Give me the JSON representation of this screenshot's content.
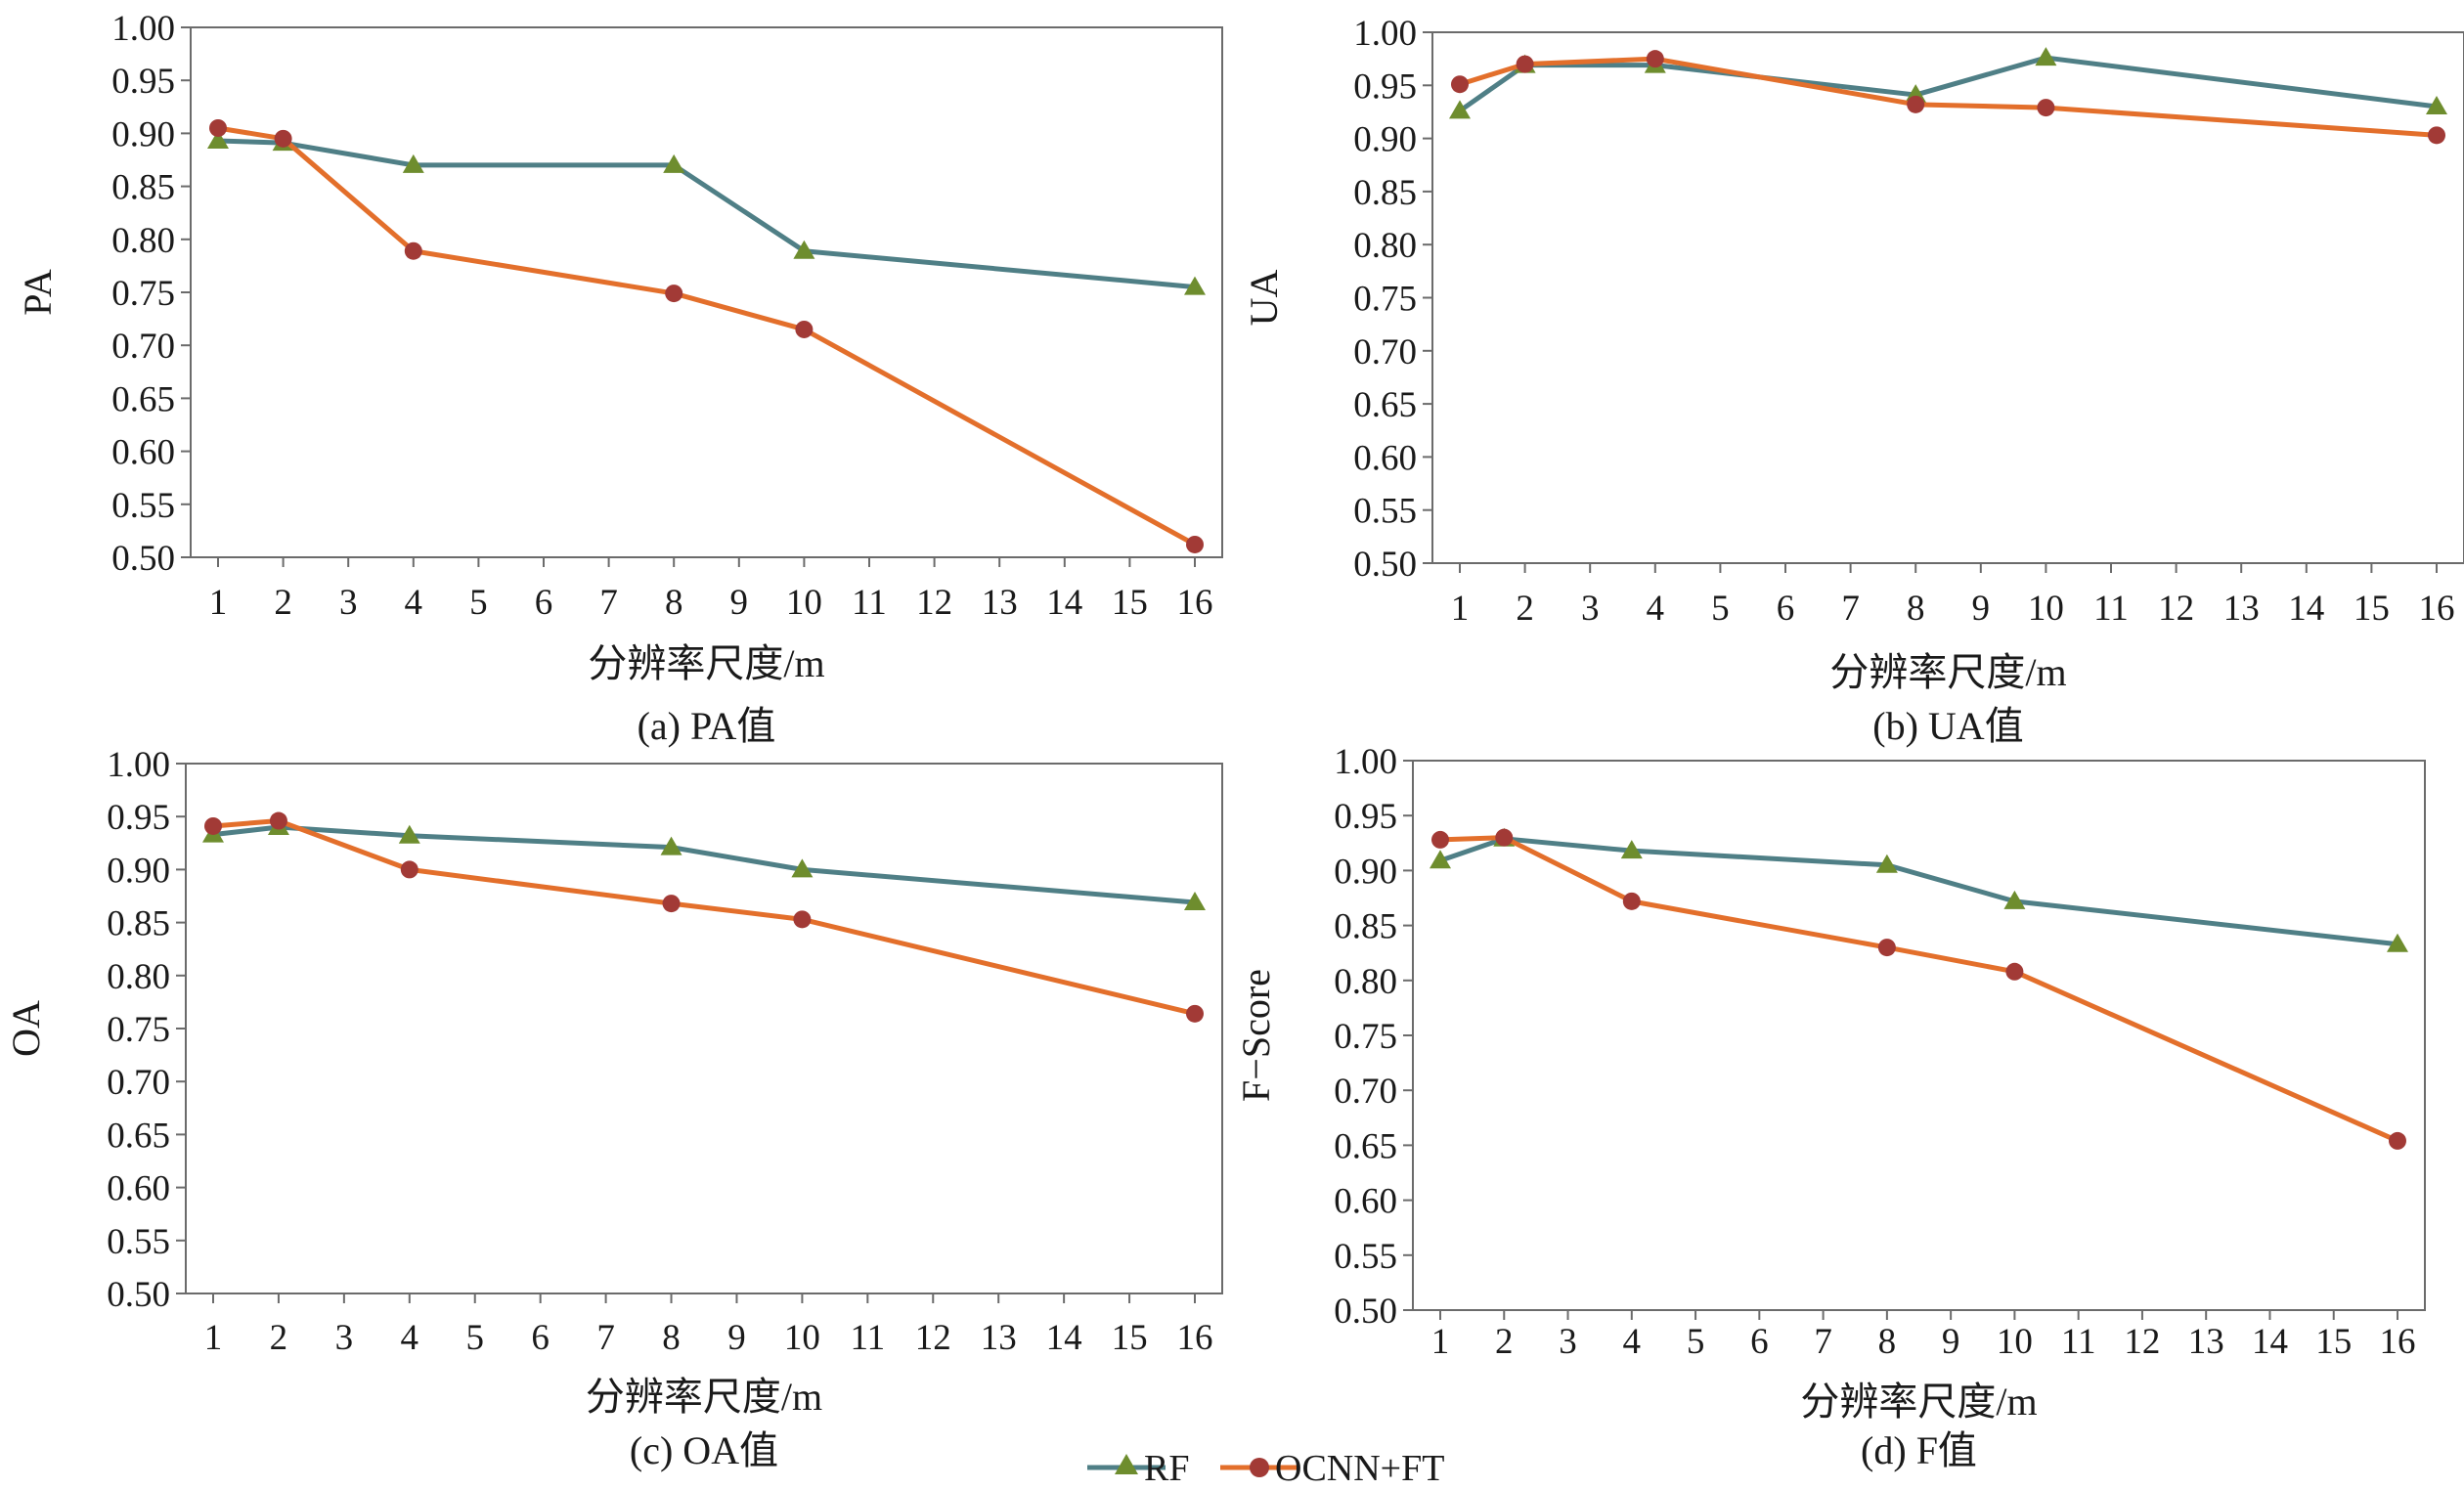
{
  "colors": {
    "rf": "#4f7f86",
    "ocnn": "#e36f2b",
    "rf_marker": "#6e8d2e",
    "ocnn_marker": "#a23a36",
    "axis": "#6b6b6b"
  },
  "legend": {
    "rf": "RF",
    "ocnn": "OCNN+FT"
  },
  "chart_data": [
    {
      "type": "line",
      "caption": "(a) PA值",
      "xlabel": "分辨率尺度/m",
      "ylabel": "PA",
      "ylim": [
        0.5,
        1.0
      ],
      "yticks": [
        "0.50",
        "0.55",
        "0.60",
        "0.65",
        "0.70",
        "0.75",
        "0.80",
        "0.85",
        "0.90",
        "0.95",
        "1.00"
      ],
      "xticks": [
        "1",
        "2",
        "3",
        "4",
        "5",
        "6",
        "7",
        "8",
        "9",
        "10",
        "11",
        "12",
        "13",
        "14",
        "15",
        "16"
      ],
      "x": [
        1,
        2,
        4,
        8,
        10,
        16
      ],
      "series": [
        {
          "name": "RF",
          "values": [
            0.893,
            0.891,
            0.87,
            0.87,
            0.789,
            0.755
          ]
        },
        {
          "name": "OCNN+FT",
          "values": [
            0.905,
            0.895,
            0.789,
            0.749,
            0.715,
            0.512
          ]
        }
      ]
    },
    {
      "type": "line",
      "caption": "(b) UA值",
      "xlabel": "分辨率尺度/m",
      "ylabel": "UA",
      "ylim": [
        0.5,
        1.0
      ],
      "yticks": [
        "0.50",
        "0.55",
        "0.60",
        "0.65",
        "0.70",
        "0.75",
        "0.80",
        "0.85",
        "0.90",
        "0.95",
        "1.00"
      ],
      "xticks": [
        "1",
        "2",
        "3",
        "4",
        "5",
        "6",
        "7",
        "8",
        "9",
        "10",
        "11",
        "12",
        "13",
        "14",
        "15",
        "16"
      ],
      "x": [
        1,
        2,
        4,
        8,
        10,
        16
      ],
      "series": [
        {
          "name": "RF",
          "values": [
            0.926,
            0.969,
            0.969,
            0.941,
            0.976,
            0.93
          ]
        },
        {
          "name": "OCNN+FT",
          "values": [
            0.951,
            0.97,
            0.975,
            0.932,
            0.929,
            0.903
          ]
        }
      ]
    },
    {
      "type": "line",
      "caption": "(c) OA值",
      "xlabel": "分辨率尺度/m",
      "ylabel": "OA",
      "ylim": [
        0.5,
        1.0
      ],
      "yticks": [
        "0.50",
        "0.55",
        "0.60",
        "0.65",
        "0.70",
        "0.75",
        "0.80",
        "0.85",
        "0.90",
        "0.95",
        "1.00"
      ],
      "xticks": [
        "1",
        "2",
        "3",
        "4",
        "5",
        "6",
        "7",
        "8",
        "9",
        "10",
        "11",
        "12",
        "13",
        "14",
        "15",
        "16"
      ],
      "x": [
        1,
        2,
        4,
        8,
        10,
        16
      ],
      "series": [
        {
          "name": "RF",
          "values": [
            0.933,
            0.94,
            0.932,
            0.921,
            0.9,
            0.869
          ]
        },
        {
          "name": "OCNN+FT",
          "values": [
            0.941,
            0.946,
            0.9,
            0.868,
            0.853,
            0.764
          ]
        }
      ]
    },
    {
      "type": "line",
      "caption": "(d) F值",
      "xlabel": "分辨率尺度/m",
      "ylabel": "F−Score",
      "ylim": [
        0.5,
        1.0
      ],
      "yticks": [
        "0.50",
        "0.55",
        "0.60",
        "0.65",
        "0.70",
        "0.75",
        "0.80",
        "0.85",
        "0.90",
        "0.95",
        "1.00"
      ],
      "xticks": [
        "1",
        "2",
        "3",
        "4",
        "5",
        "6",
        "7",
        "8",
        "9",
        "10",
        "11",
        "12",
        "13",
        "14",
        "15",
        "16"
      ],
      "x": [
        1,
        2,
        4,
        8,
        10,
        16
      ],
      "series": [
        {
          "name": "RF",
          "values": [
            0.909,
            0.929,
            0.918,
            0.905,
            0.872,
            0.833
          ]
        },
        {
          "name": "OCNN+FT",
          "values": [
            0.928,
            0.93,
            0.872,
            0.83,
            0.808,
            0.654
          ]
        }
      ]
    }
  ]
}
